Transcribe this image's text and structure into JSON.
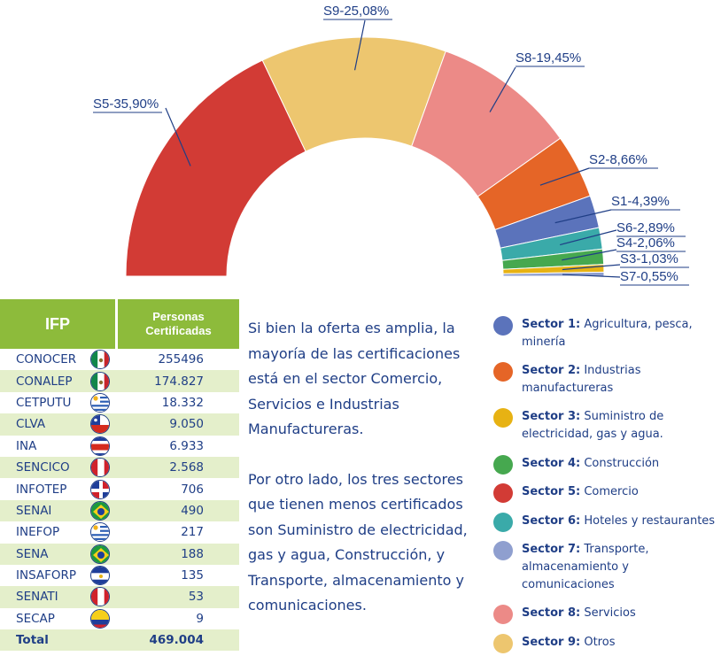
{
  "chart_data": {
    "type": "pie",
    "variant": "half-donut",
    "slices": [
      {
        "label": "S5-35,90%",
        "value": 35.9,
        "color": "#d23b35"
      },
      {
        "label": "S9-25,08%",
        "value": 25.08,
        "color": "#edc66f"
      },
      {
        "label": "S8-19,45%",
        "value": 19.45,
        "color": "#ec8a87"
      },
      {
        "label": "S2-8,66%",
        "value": 8.66,
        "color": "#e56527"
      },
      {
        "label": "S1-4,39%",
        "value": 4.39,
        "color": "#5b73bb"
      },
      {
        "label": "S6-2,89%",
        "value": 2.89,
        "color": "#3aaaa9"
      },
      {
        "label": "S4-2,06%",
        "value": 2.06,
        "color": "#46a84f"
      },
      {
        "label": "S3-1,03%",
        "value": 1.03,
        "color": "#e7b213"
      },
      {
        "label": "S7-0,55%",
        "value": 0.55,
        "color": "#8f9fcf"
      }
    ]
  },
  "table": {
    "header_ifp": "IFP",
    "header_personas": "Personas\nCertificadas",
    "rows": [
      {
        "name": "CONOCER",
        "value": "255496",
        "flag": "mexico"
      },
      {
        "name": "CONALEP",
        "value": "174.827",
        "flag": "mexico"
      },
      {
        "name": "CETPUTU",
        "value": "18.332",
        "flag": "uruguay"
      },
      {
        "name": "CLVA",
        "value": "9.050",
        "flag": "chile"
      },
      {
        "name": "INA",
        "value": "6.933",
        "flag": "costa-rica"
      },
      {
        "name": "SENCICO",
        "value": "2.568",
        "flag": "peru"
      },
      {
        "name": "INFOTEP",
        "value": "706",
        "flag": "dominican-republic"
      },
      {
        "name": "SENAI",
        "value": "490",
        "flag": "brazil"
      },
      {
        "name": "INEFOP",
        "value": "217",
        "flag": "uruguay"
      },
      {
        "name": "SENA",
        "value": "188",
        "flag": "brazil"
      },
      {
        "name": "INSAFORP",
        "value": "135",
        "flag": "el-salvador"
      },
      {
        "name": "SENATI",
        "value": "53",
        "flag": "peru"
      },
      {
        "name": "SECAP",
        "value": "9",
        "flag": "ecuador"
      }
    ],
    "total_label": "Total",
    "total_value": "469.004"
  },
  "prose": [
    "Si bien la oferta es amplia, la mayoría de las certificaciones está en el sector Comercio, Servicios e Industrias Manufactureras.",
    "Por otro lado, los tres sectores que tienen menos certificados son Suministro de electricidad, gas y agua, Construcción, y Transporte, almacenamiento y comunicaciones."
  ],
  "legend": [
    {
      "name": "Sector 1:",
      "desc": " Agricultura, pesca, minería",
      "color": "#5b73bb"
    },
    {
      "name": "Sector 2:",
      "desc": " Industrias manufactureras",
      "color": "#e56527"
    },
    {
      "name": "Sector 3:",
      "desc": " Suministro de electricidad, gas y agua.",
      "color": "#e7b213"
    },
    {
      "name": "Sector 4:",
      "desc": " Construcción",
      "color": "#46a84f"
    },
    {
      "name": "Sector 5:",
      "desc": " Comercio",
      "color": "#d23b35"
    },
    {
      "name": "Sector 6:",
      "desc": " Hoteles y restaurantes",
      "color": "#3aaaa9"
    },
    {
      "name": "Sector 7:",
      "desc": " Transporte, almacenamiento y comunicaciones",
      "color": "#8f9fcf"
    },
    {
      "name": "Sector 8:",
      "desc": " Servicios",
      "color": "#ec8a87"
    },
    {
      "name": "Sector 9:",
      "desc": " Otros",
      "color": "#edc66f"
    }
  ]
}
